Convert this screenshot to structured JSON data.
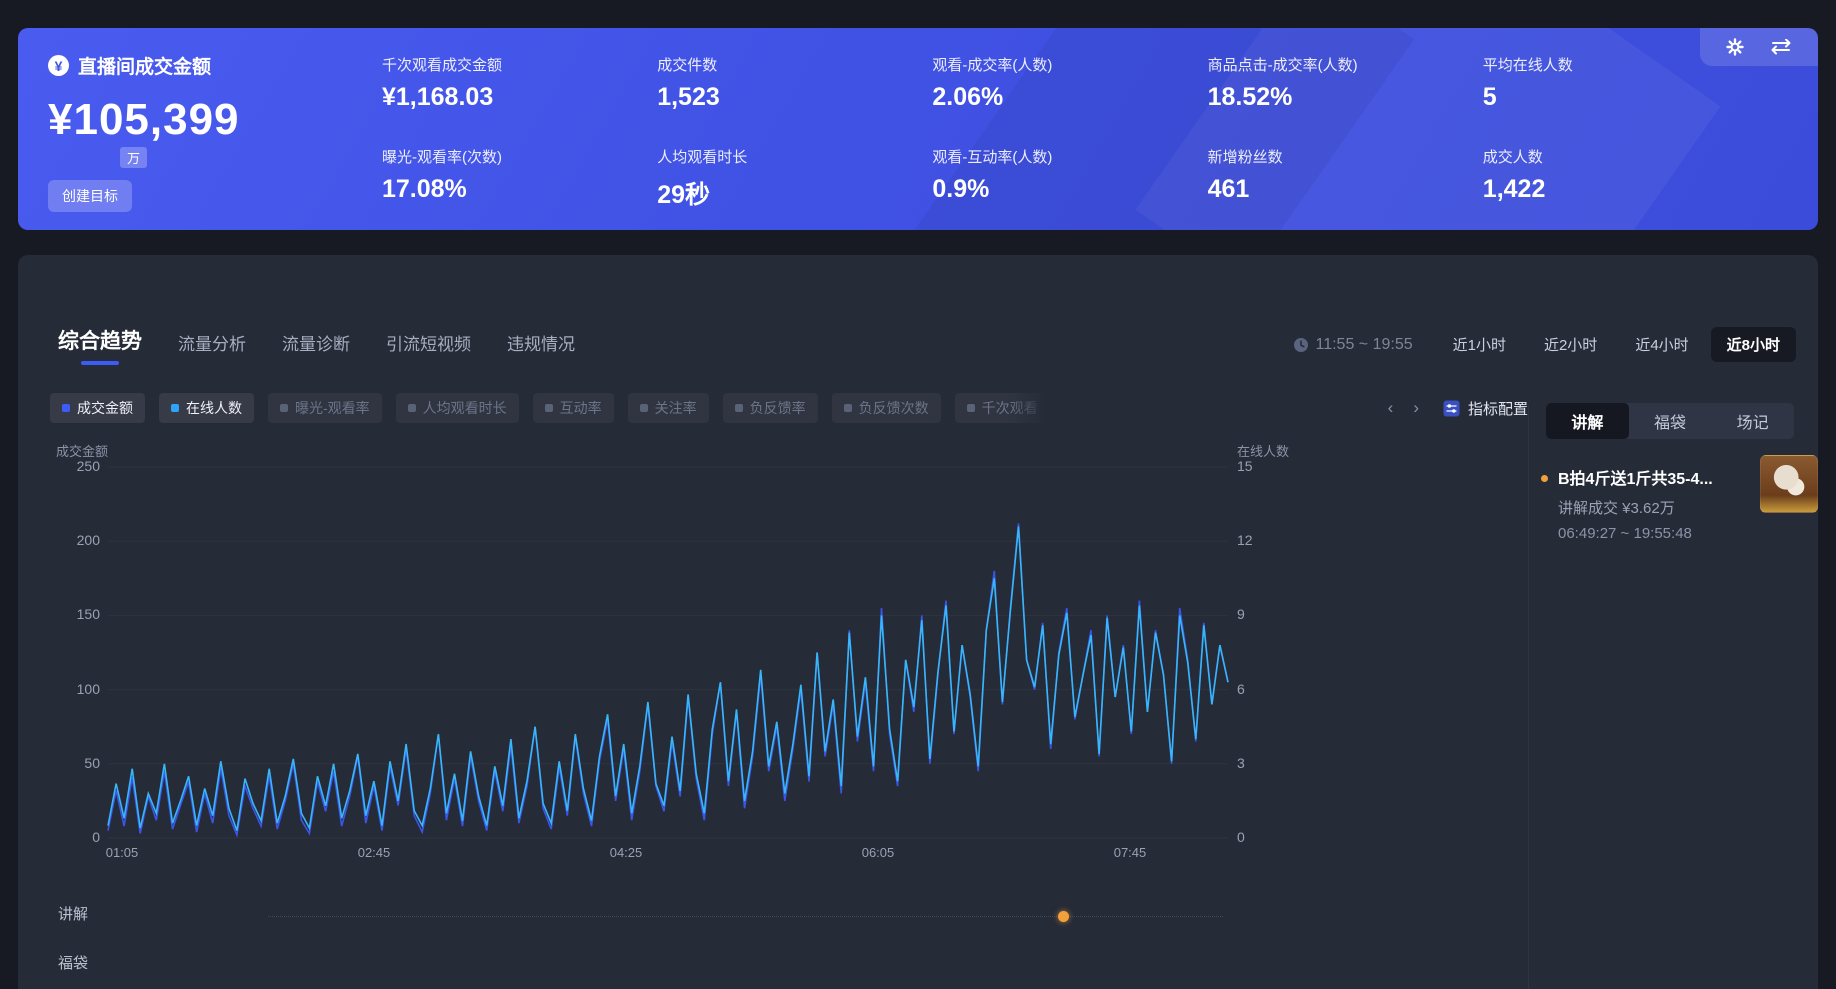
{
  "banner": {
    "title": "直播间成交金额",
    "main_value": "¥105,399",
    "main_unit": "万",
    "create_goal_label": "创建目标",
    "metrics": [
      {
        "label": "千次观看成交金额",
        "value": "¥1,168.03"
      },
      {
        "label": "成交件数",
        "value": "1,523"
      },
      {
        "label": "观看-成交率(人数)",
        "value": "2.06%"
      },
      {
        "label": "商品点击-成交率(人数)",
        "value": "18.52%"
      },
      {
        "label": "平均在线人数",
        "value": "5"
      },
      {
        "label": "曝光-观看率(次数)",
        "value": "17.08%"
      },
      {
        "label": "人均观看时长",
        "value": "29秒"
      },
      {
        "label": "观看-互动率(人数)",
        "value": "0.9%"
      },
      {
        "label": "新增粉丝数",
        "value": "461"
      },
      {
        "label": "成交人数",
        "value": "1,422"
      }
    ]
  },
  "toolbar": {
    "tabs": [
      "综合趋势",
      "流量分析",
      "流量诊断",
      "引流短视频",
      "违规情况"
    ],
    "active_tab": 0,
    "time_range": "11:55 ~ 19:55",
    "quick_ranges": [
      "近1小时",
      "近2小时",
      "近4小时",
      "近8小时"
    ],
    "active_range": 3,
    "config_label": "指标配置"
  },
  "legend": {
    "items": [
      {
        "label": "成交金额",
        "color": "#3d5cf5",
        "active": true
      },
      {
        "label": "在线人数",
        "color": "#2fa3f7",
        "active": true
      },
      {
        "label": "曝光-观看率",
        "color": "#5a6275",
        "active": false
      },
      {
        "label": "人均观看时长",
        "color": "#5a6275",
        "active": false
      },
      {
        "label": "互动率",
        "color": "#5a6275",
        "active": false
      },
      {
        "label": "关注率",
        "color": "#5a6275",
        "active": false
      },
      {
        "label": "负反馈率",
        "color": "#5a6275",
        "active": false
      },
      {
        "label": "负反馈次数",
        "color": "#5a6275",
        "active": false
      },
      {
        "label": "千次观看",
        "color": "#5a6275",
        "active": false,
        "faded": true
      }
    ]
  },
  "chart_data": {
    "type": "line",
    "title": "",
    "ylabel_left": "成交金额",
    "ylabel_right": "在线人数",
    "y_left": {
      "max": 250,
      "ticks": [
        250,
        200,
        150,
        100,
        50,
        0
      ]
    },
    "y_right": {
      "max": 15,
      "ticks": [
        15,
        12,
        9,
        6,
        3,
        0
      ]
    },
    "x_ticks": [
      "01:05",
      "02:45",
      "04:25",
      "06:05",
      "07:45"
    ],
    "grid": false,
    "series": [
      {
        "name": "成交金额",
        "axis": "left",
        "color": "#3a55e8",
        "values": [
          5,
          32,
          8,
          41,
          3,
          28,
          12,
          45,
          6,
          22,
          38,
          4,
          30,
          10,
          47,
          15,
          2,
          35,
          20,
          8,
          42,
          6,
          25,
          50,
          12,
          3,
          38,
          18,
          45,
          8,
          28,
          55,
          10,
          35,
          5,
          48,
          22,
          60,
          15,
          4,
          30,
          70,
          12,
          40,
          8,
          55,
          25,
          5,
          45,
          18,
          62,
          10,
          35,
          75,
          20,
          6,
          48,
          15,
          68,
          30,
          8,
          52,
          80,
          25,
          60,
          12,
          45,
          90,
          35,
          18,
          65,
          28,
          95,
          40,
          12,
          70,
          105,
          35,
          85,
          20,
          55,
          110,
          45,
          75,
          25,
          60,
          100,
          38,
          125,
          55,
          90,
          30,
          140,
          65,
          105,
          45,
          155,
          70,
          35,
          120,
          85,
          150,
          50,
          110,
          160,
          70,
          130,
          95,
          45,
          140,
          180,
          90,
          155,
          212,
          120,
          100,
          145,
          60,
          125,
          155,
          80,
          110,
          140,
          55,
          150,
          95,
          130,
          70,
          160,
          85,
          140,
          110,
          50,
          155,
          120,
          65,
          145,
          90,
          130,
          105
        ]
      },
      {
        "name": "在线人数",
        "axis": "right",
        "color": "#38b6f8",
        "values": [
          0.5,
          2.2,
          0.8,
          2.8,
          0.4,
          1.8,
          1.0,
          3.0,
          0.6,
          1.5,
          2.5,
          0.5,
          2.0,
          0.9,
          3.1,
          1.2,
          0.3,
          2.4,
          1.4,
          0.7,
          2.8,
          0.6,
          1.7,
          3.2,
          1.0,
          0.4,
          2.5,
          1.3,
          3.0,
          0.8,
          1.9,
          3.4,
          0.9,
          2.3,
          0.5,
          3.1,
          1.5,
          3.8,
          1.1,
          0.5,
          2.0,
          4.2,
          1.0,
          2.6,
          0.7,
          3.5,
          1.7,
          0.5,
          2.9,
          1.3,
          4.0,
          0.8,
          2.3,
          4.5,
          1.4,
          0.6,
          3.1,
          1.1,
          4.2,
          2.0,
          0.7,
          3.3,
          5.0,
          1.7,
          3.8,
          1.0,
          2.9,
          5.5,
          2.2,
          1.3,
          4.1,
          1.9,
          5.8,
          2.6,
          1.0,
          4.4,
          6.3,
          2.3,
          5.2,
          1.5,
          3.5,
          6.8,
          2.9,
          4.7,
          1.8,
          3.8,
          6.2,
          2.5,
          7.5,
          3.5,
          5.6,
          2.1,
          8.3,
          4.1,
          6.5,
          2.9,
          9.0,
          4.4,
          2.3,
          7.2,
          5.3,
          8.8,
          3.2,
          6.7,
          9.4,
          4.3,
          7.8,
          5.8,
          2.9,
          8.4,
          10.5,
          5.5,
          9.2,
          12.6,
          7.2,
          6.1,
          8.6,
          3.8,
          7.4,
          9.1,
          4.9,
          6.6,
          8.2,
          3.4,
          8.9,
          5.7,
          7.7,
          4.3,
          9.4,
          5.1,
          8.3,
          6.6,
          3.1,
          9.0,
          7.1,
          4.0,
          8.6,
          5.4,
          7.8,
          6.3
        ]
      }
    ]
  },
  "timeline_rows": [
    {
      "label": "讲解",
      "marker_color": "#f2a13a"
    },
    {
      "label": "福袋"
    }
  ],
  "sidebar": {
    "tabs": [
      "讲解",
      "福袋",
      "场记"
    ],
    "active_tab": 0,
    "item": {
      "title": "B拍4斤送1斤共35-4...",
      "deal_text": "讲解成交 ¥3.62万",
      "time_text": "06:49:27 ~ 19:55:48"
    }
  }
}
